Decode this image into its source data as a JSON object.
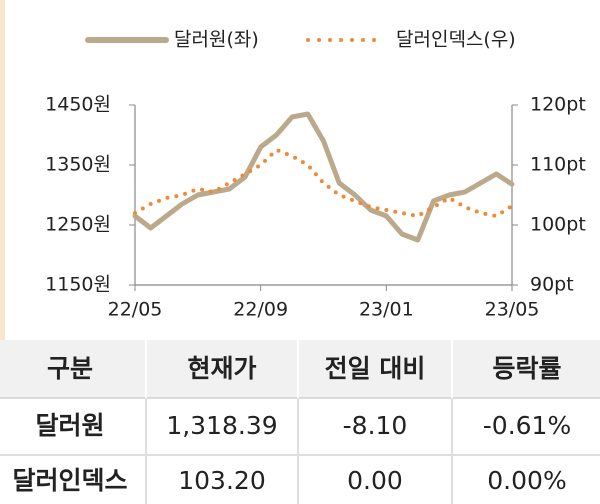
{
  "chart_data": {
    "type": "line",
    "categories": [
      "22/05",
      null,
      null,
      null,
      null,
      null,
      null,
      null,
      "22/09",
      null,
      null,
      null,
      null,
      null,
      null,
      null,
      "23/01",
      null,
      null,
      null,
      null,
      null,
      null,
      null,
      "23/05"
    ],
    "series": [
      {
        "name": "달러원(좌)",
        "color": "#bba98b",
        "values": [
          1265,
          1245,
          1265,
          1285,
          1300,
          1305,
          1310,
          1330,
          1380,
          1400,
          1430,
          1435,
          1390,
          1320,
          1300,
          1275,
          1265,
          1235,
          1225,
          1290,
          1300,
          1305,
          1320,
          1335,
          1318
        ]
      },
      {
        "name": "달러인덱스(우)",
        "color": "#ef8a3a",
        "axis": "y2",
        "values": [
          102,
          103.5,
          104.5,
          105,
          106,
          105.5,
          107,
          108.5,
          110,
          112.5,
          111.5,
          110,
          107,
          105,
          104,
          103,
          102.5,
          102,
          101.5,
          103,
          104.5,
          103,
          102,
          101.5,
          103.2
        ]
      }
    ],
    "ylim": [
      1150,
      1450
    ],
    "yticks": [
      {
        "value": 1150,
        "label": "1150원"
      },
      {
        "value": 1250,
        "label": "1250원"
      },
      {
        "value": 1350,
        "label": "1350원"
      },
      {
        "value": 1450,
        "label": "1450원"
      }
    ],
    "y2lim": [
      90,
      120
    ],
    "y2ticks": [
      {
        "value": 90,
        "label": "90pt"
      },
      {
        "value": 100,
        "label": "100pt"
      },
      {
        "value": 110,
        "label": "110pt"
      },
      {
        "value": 120,
        "label": "120pt"
      }
    ]
  },
  "table": {
    "header": [
      "구분",
      "현재가",
      "전일 대비",
      "등락률"
    ],
    "rows": [
      [
        "달러원",
        "1,318.39",
        "-8.10",
        "-0.61%"
      ],
      [
        "달러인덱스",
        "103.20",
        "0.00",
        "0.00%"
      ]
    ]
  }
}
